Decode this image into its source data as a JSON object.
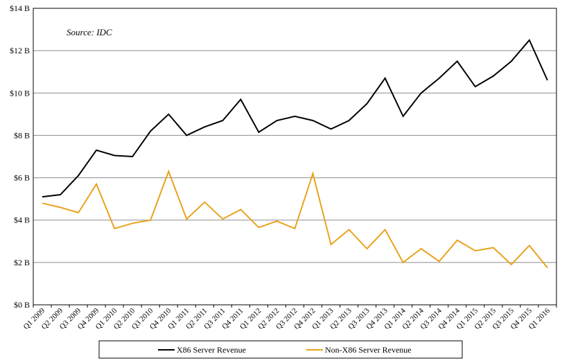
{
  "chart_data": {
    "type": "line",
    "title": "",
    "xlabel": "",
    "ylabel": "",
    "annotation": "Source: IDC",
    "ylim": [
      0,
      14
    ],
    "yticks": [
      {
        "value": 0,
        "label": "$0 B"
      },
      {
        "value": 2,
        "label": "$2 B"
      },
      {
        "value": 4,
        "label": "$4 B"
      },
      {
        "value": 6,
        "label": "$6 B"
      },
      {
        "value": 8,
        "label": "$8 B"
      },
      {
        "value": 10,
        "label": "$10 B"
      },
      {
        "value": 12,
        "label": "$12 B"
      },
      {
        "value": 14,
        "label": "$14 B"
      }
    ],
    "grid": true,
    "legend_position": "bottom",
    "categories": [
      "Q1 2009",
      "Q2 2009",
      "Q3 2009",
      "Q4 2009",
      "Q1 2010",
      "Q2 2010",
      "Q3 2010",
      "Q4 2010",
      "Q1 2011",
      "Q2 2011",
      "Q3 2011",
      "Q4 2011",
      "Q1 2012",
      "Q2 2012",
      "Q3 2012",
      "Q4 2012",
      "Q1 2013",
      "Q2 2013",
      "Q3 2013",
      "Q4 2013",
      "Q1 2014",
      "Q2 2014",
      "Q3 2014",
      "Q4 2014",
      "Q1 2015",
      "Q2 2015",
      "Q3 2015",
      "Q4 2015",
      "Q1 2016"
    ],
    "series": [
      {
        "name": "X86 Server Revenue",
        "color": "#000000",
        "values": [
          5.1,
          5.2,
          6.1,
          7.3,
          7.05,
          7.0,
          8.2,
          9.0,
          8.0,
          8.4,
          8.7,
          9.7,
          8.15,
          8.7,
          8.9,
          8.7,
          8.3,
          8.7,
          9.5,
          10.7,
          8.9,
          10.0,
          10.7,
          11.5,
          10.3,
          10.8,
          11.5,
          12.5,
          10.6
        ]
      },
      {
        "name": "Non-X86 Server Revenue",
        "color": "#e8a21c",
        "values": [
          4.8,
          4.6,
          4.35,
          5.7,
          3.6,
          3.85,
          4.0,
          6.3,
          4.05,
          4.85,
          4.05,
          4.5,
          3.65,
          3.95,
          3.6,
          6.2,
          2.85,
          3.55,
          2.65,
          3.55,
          2.0,
          2.65,
          2.05,
          3.05,
          2.55,
          2.7,
          1.9,
          2.8,
          1.75
        ]
      }
    ]
  }
}
